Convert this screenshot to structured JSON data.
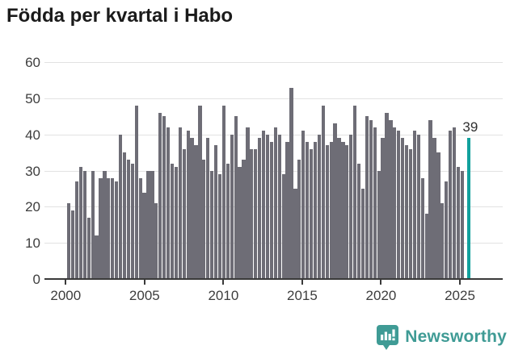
{
  "title": "Födda per kvartal i Habo",
  "highlight_label": "39",
  "watermark": {
    "brand": "Newsworthy"
  },
  "y_axis": {
    "tick_labels": [
      "60",
      "50",
      "40",
      "30",
      "20",
      "10",
      "0"
    ],
    "max": 60,
    "min": 0
  },
  "x_axis": {
    "tick_labels": [
      "2000",
      "2005",
      "2010",
      "2015",
      "2020",
      "2025"
    ]
  },
  "colors": {
    "bar": "#6e6d76",
    "highlight": "#12a19d",
    "grid": "#e2e2e2",
    "axis": "#3a3a3a",
    "tick_text": "#3d3d3d",
    "title_text": "#1b1b1b",
    "brand": "#3f9b95"
  },
  "chart_data": {
    "type": "bar",
    "title": "Födda per kvartal i Habo",
    "xlabel": "",
    "ylabel": "",
    "period": "2000-Q1 to 2025-Q1, quarterly",
    "ylim": [
      0,
      60
    ],
    "grid": "horizontal",
    "legend": "none",
    "values": [
      21,
      19,
      27,
      31,
      30,
      17,
      30,
      12,
      28,
      30,
      28,
      28,
      27,
      40,
      35,
      33,
      32,
      48,
      28,
      24,
      30,
      30,
      21,
      46,
      45,
      42,
      32,
      31,
      42,
      36,
      41,
      39,
      37,
      48,
      33,
      39,
      30,
      37,
      29,
      48,
      32,
      40,
      45,
      31,
      33,
      42,
      36,
      36,
      39,
      41,
      40,
      38,
      42,
      40,
      29,
      38,
      53,
      25,
      33,
      41,
      38,
      36,
      38,
      40,
      48,
      37,
      38,
      43,
      39,
      38,
      37,
      40,
      48,
      32,
      25,
      45,
      44,
      42,
      30,
      39,
      46,
      44,
      42,
      41,
      39,
      37,
      36,
      41,
      40,
      28,
      18,
      44,
      39,
      35,
      21,
      27,
      41,
      42,
      31,
      30,
      39
    ],
    "highlight_index": 100,
    "highlight_value": 39,
    "x_tick_years": [
      2000,
      2005,
      2010,
      2015,
      2020,
      2025
    ]
  }
}
